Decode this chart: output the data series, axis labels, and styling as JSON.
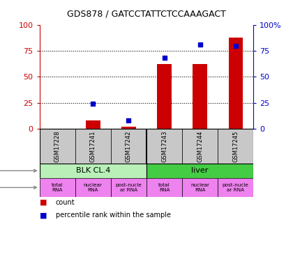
{
  "title": "GDS878 / GATCCTATTCTCCAAAGACT",
  "samples": [
    "GSM17228",
    "GSM17241",
    "GSM17242",
    "GSM17243",
    "GSM17244",
    "GSM17245"
  ],
  "counts": [
    0,
    8,
    2,
    62,
    62,
    88
  ],
  "percentiles": [
    0,
    24,
    8,
    68,
    81,
    80
  ],
  "ylim": [
    0,
    100
  ],
  "yticks": [
    0,
    25,
    50,
    75,
    100
  ],
  "bar_color": "#cc0000",
  "dot_color": "#0000cc",
  "left_axis_color": "#cc0000",
  "right_axis_color": "#0000cc",
  "sample_bg_color": "#c8c8c8",
  "cell_type_blk_color": "#b8f0b8",
  "cell_type_liver_color": "#44cc44",
  "protocol_color": "#ee82ee",
  "bg_color": "#ffffff",
  "bar_width": 0.4,
  "legend_count_color": "#cc0000",
  "legend_pct_color": "#0000cc"
}
